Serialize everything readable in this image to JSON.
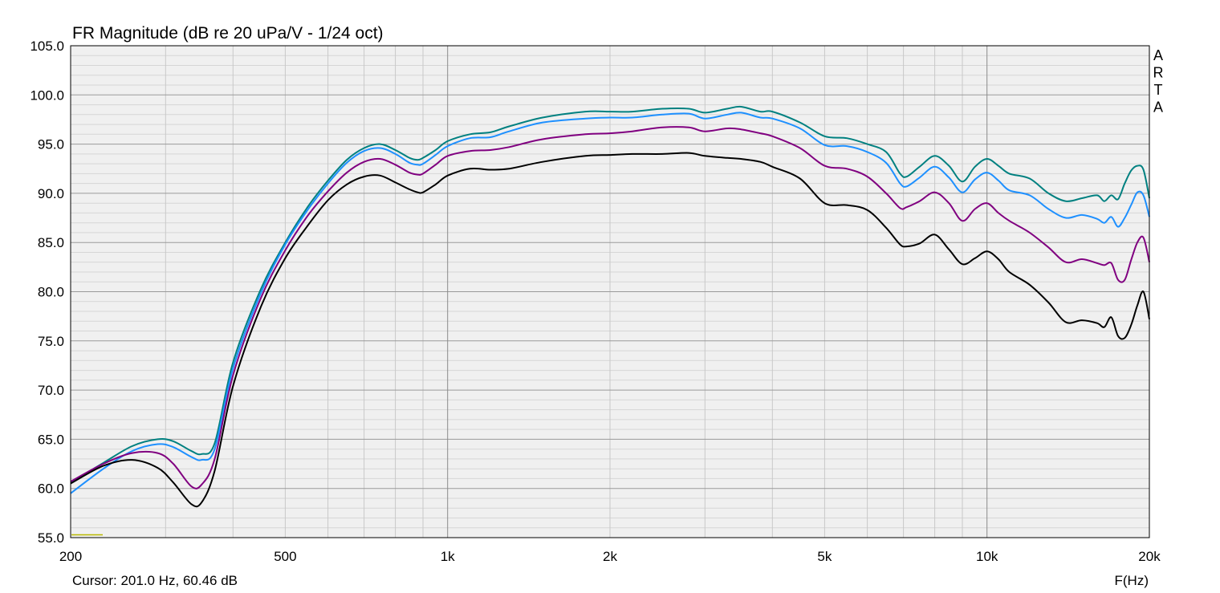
{
  "chart_data": {
    "type": "line",
    "title": "FR Magnitude (dB re 20 uPa/V - 1/24 oct)",
    "xlabel": "F(Hz)",
    "ylabel": "",
    "watermark": "ARTA",
    "cursor_readout": "Cursor: 201.0 Hz, 60.46 dB",
    "x_scale": "log",
    "xlim": [
      200,
      20000
    ],
    "ylim": [
      55,
      105
    ],
    "grid": true,
    "x_ticks": [
      {
        "value": 200,
        "label": "200"
      },
      {
        "value": 500,
        "label": "500"
      },
      {
        "value": 1000,
        "label": "1k"
      },
      {
        "value": 2000,
        "label": "2k"
      },
      {
        "value": 5000,
        "label": "5k"
      },
      {
        "value": 10000,
        "label": "10k"
      },
      {
        "value": 20000,
        "label": "20k"
      }
    ],
    "y_ticks": [
      "105.0",
      "100.0",
      "95.0",
      "90.0",
      "85.0",
      "80.0",
      "75.0",
      "70.0",
      "65.0",
      "60.0",
      "55.0"
    ],
    "series": [
      {
        "color": "#008080",
        "x": [
          200,
          230,
          260,
          290,
          310,
          335,
          350,
          370,
          400,
          450,
          500,
          550,
          600,
          650,
          700,
          750,
          800,
          850,
          880,
          900,
          950,
          1000,
          1100,
          1200,
          1300,
          1500,
          1800,
          2000,
          2200,
          2500,
          2800,
          3000,
          3300,
          3500,
          3800,
          4000,
          4500,
          5000,
          5500,
          6000,
          6500,
          6900,
          7100,
          7500,
          8000,
          8500,
          9000,
          9500,
          10000,
          10500,
          11000,
          12000,
          13000,
          14000,
          15000,
          16000,
          16500,
          17000,
          17500,
          18000,
          18500,
          19000,
          19500,
          20000
        ],
        "y": [
          60.6,
          62.6,
          64.3,
          65.0,
          64.8,
          63.8,
          63.5,
          64.6,
          72.8,
          80.2,
          85.0,
          88.6,
          91.3,
          93.4,
          94.6,
          95.0,
          94.4,
          93.6,
          93.4,
          93.6,
          94.4,
          95.3,
          96.0,
          96.2,
          96.8,
          97.7,
          98.3,
          98.3,
          98.3,
          98.6,
          98.6,
          98.2,
          98.6,
          98.8,
          98.3,
          98.3,
          97.2,
          95.8,
          95.6,
          95.0,
          94.2,
          92.0,
          91.7,
          92.7,
          93.8,
          92.8,
          91.2,
          92.7,
          93.5,
          92.8,
          92.0,
          91.5,
          90.0,
          89.2,
          89.5,
          89.8,
          89.2,
          89.8,
          89.4,
          91.0,
          92.3,
          92.8,
          92.4,
          89.5
        ]
      },
      {
        "color": "#1e90ff",
        "x": [
          200,
          230,
          260,
          290,
          310,
          335,
          350,
          370,
          400,
          450,
          500,
          550,
          600,
          650,
          700,
          750,
          800,
          850,
          880,
          900,
          950,
          1000,
          1100,
          1200,
          1300,
          1500,
          1800,
          2000,
          2200,
          2500,
          2800,
          3000,
          3300,
          3500,
          3800,
          4000,
          4500,
          5000,
          5500,
          6000,
          6500,
          6900,
          7100,
          7500,
          8000,
          8500,
          9000,
          9500,
          10000,
          10500,
          11000,
          12000,
          13000,
          14000,
          15000,
          16000,
          16500,
          17000,
          17500,
          18000,
          18500,
          19000,
          19500,
          20000
        ],
        "y": [
          59.5,
          62.0,
          63.8,
          64.5,
          64.2,
          63.2,
          62.9,
          64.0,
          72.2,
          79.8,
          84.8,
          88.3,
          91.0,
          93.1,
          94.3,
          94.6,
          94.0,
          93.1,
          92.9,
          93.0,
          93.9,
          94.8,
          95.6,
          95.7,
          96.3,
          97.2,
          97.6,
          97.7,
          97.7,
          98.0,
          98.1,
          97.6,
          98.0,
          98.2,
          97.7,
          97.6,
          96.6,
          94.9,
          94.8,
          94.2,
          93.1,
          91.0,
          90.7,
          91.6,
          92.7,
          91.6,
          90.1,
          91.4,
          92.1,
          91.3,
          90.3,
          89.8,
          88.4,
          87.5,
          87.8,
          87.4,
          87.0,
          87.6,
          86.6,
          87.5,
          88.8,
          90.1,
          89.8,
          87.6
        ]
      },
      {
        "color": "#800080",
        "x": [
          200,
          230,
          260,
          290,
          310,
          335,
          350,
          370,
          400,
          450,
          500,
          550,
          600,
          650,
          700,
          750,
          800,
          850,
          880,
          900,
          950,
          1000,
          1100,
          1200,
          1300,
          1500,
          1800,
          2000,
          2200,
          2500,
          2800,
          3000,
          3300,
          3500,
          3800,
          4000,
          4500,
          5000,
          5500,
          6000,
          6500,
          6900,
          7100,
          7500,
          8000,
          8500,
          9000,
          9500,
          10000,
          10500,
          11000,
          12000,
          13000,
          14000,
          15000,
          16000,
          16500,
          17000,
          17500,
          18000,
          18500,
          19000,
          19500,
          20000
        ],
        "y": [
          60.7,
          62.5,
          63.6,
          63.6,
          62.5,
          60.2,
          60.4,
          63.0,
          71.5,
          79.3,
          84.2,
          87.7,
          90.2,
          92.1,
          93.2,
          93.5,
          92.9,
          92.1,
          91.9,
          92.0,
          92.9,
          93.8,
          94.3,
          94.4,
          94.7,
          95.5,
          96.0,
          96.1,
          96.3,
          96.7,
          96.7,
          96.3,
          96.6,
          96.5,
          96.1,
          95.8,
          94.6,
          92.8,
          92.5,
          91.7,
          90.0,
          88.5,
          88.6,
          89.2,
          90.1,
          89.0,
          87.2,
          88.4,
          89.0,
          88.0,
          87.2,
          86.0,
          84.5,
          83.0,
          83.3,
          82.9,
          82.7,
          82.9,
          81.2,
          81.2,
          83.2,
          85.0,
          85.5,
          83.0
        ]
      },
      {
        "color": "#000000",
        "x": [
          200,
          230,
          260,
          290,
          310,
          335,
          350,
          370,
          400,
          450,
          500,
          550,
          600,
          650,
          700,
          750,
          800,
          850,
          880,
          900,
          950,
          1000,
          1100,
          1200,
          1300,
          1500,
          1800,
          2000,
          2200,
          2500,
          2800,
          3000,
          3300,
          3500,
          3800,
          4000,
          4500,
          5000,
          5500,
          6000,
          6500,
          6900,
          7100,
          7500,
          8000,
          8500,
          9000,
          9500,
          10000,
          10500,
          11000,
          12000,
          13000,
          14000,
          15000,
          16000,
          16500,
          17000,
          17500,
          18000,
          18500,
          19000,
          19500,
          20000
        ],
        "y": [
          60.5,
          62.3,
          62.9,
          62.1,
          60.6,
          58.4,
          58.6,
          61.8,
          70.4,
          78.4,
          83.4,
          86.7,
          89.3,
          90.9,
          91.7,
          91.8,
          91.1,
          90.4,
          90.1,
          90.1,
          90.9,
          91.8,
          92.5,
          92.4,
          92.5,
          93.2,
          93.8,
          93.9,
          94.0,
          94.0,
          94.1,
          93.8,
          93.6,
          93.5,
          93.2,
          92.7,
          91.5,
          89.0,
          88.8,
          88.3,
          86.5,
          84.8,
          84.6,
          84.9,
          85.8,
          84.3,
          82.8,
          83.4,
          84.1,
          83.3,
          82.0,
          80.7,
          78.9,
          76.9,
          77.1,
          76.8,
          76.4,
          77.4,
          75.5,
          75.3,
          76.6,
          78.6,
          80.0,
          77.2
        ]
      }
    ]
  }
}
